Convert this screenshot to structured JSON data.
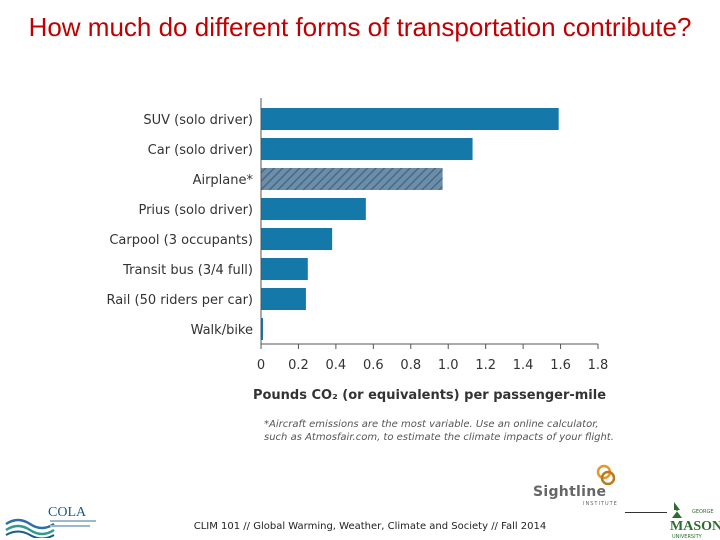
{
  "slide": {
    "title": "How much do different forms of transportation contribute?",
    "footer": "CLIM 101 // Global Warming, Weather, Climate and Society // Fall 2014",
    "footnote_lines": [
      "*Aircraft emissions are the most variable.  Use an online calculator,",
      "such as Atmosfair.com, to estimate the climate impacts of your flight."
    ]
  },
  "logos": {
    "sightline_name": "Sightline",
    "sightline_sub": "INSTITUTE",
    "cola": "COLA",
    "gmu_top": "GEORGE",
    "gmu_main": "MASON",
    "gmu_bottom": "UNIVERSITY"
  },
  "colors": {
    "bar": "#1479a8",
    "bar_hatched": "#6d8ea8",
    "hatch_stroke": "#466a88",
    "title": "#c00000",
    "axis": "#555555"
  },
  "chart_data": {
    "type": "bar",
    "orientation": "horizontal",
    "title": "",
    "categories": [
      "SUV (solo driver)",
      "Car (solo driver)",
      "Airplane*",
      "Prius (solo driver)",
      "Carpool (3 occupants)",
      "Transit bus (3/4 full)",
      "Rail (50 riders per car)",
      "Walk/bike"
    ],
    "values": [
      1.59,
      1.13,
      0.97,
      0.56,
      0.38,
      0.25,
      0.24,
      0.01
    ],
    "hatched": [
      false,
      false,
      true,
      false,
      false,
      false,
      false,
      false
    ],
    "xlabel": "Pounds CO₂ (or equivalents) per passenger-mile",
    "ylabel": "",
    "xlim": [
      0,
      1.8
    ],
    "xticks": [
      0,
      0.2,
      0.4,
      0.6,
      0.8,
      1.0,
      1.2,
      1.4,
      1.6,
      1.8
    ],
    "xtick_labels": [
      "0",
      "0.2",
      "0.4",
      "0.6",
      "0.8",
      "1.0",
      "1.2",
      "1.4",
      "1.6",
      "1.8"
    ],
    "grid": false,
    "legend": "none"
  }
}
